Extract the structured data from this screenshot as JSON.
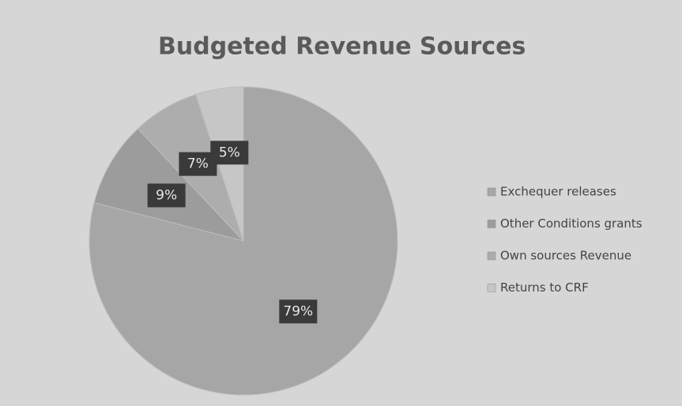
{
  "chart_data": {
    "type": "pie",
    "title": "Budgeted Revenue Sources",
    "categories": [
      "Exchequer releases",
      "Other Conditions grants",
      "Own sources Revenue",
      "Returns to CRF"
    ],
    "values": [
      79,
      9,
      7,
      5
    ],
    "value_labels": [
      "79%",
      "9%",
      "7%",
      "5%"
    ],
    "colors": [
      "#a6a6a6",
      "#9c9c9c",
      "#adadad",
      "#c6c6c6"
    ],
    "legend": "right"
  }
}
